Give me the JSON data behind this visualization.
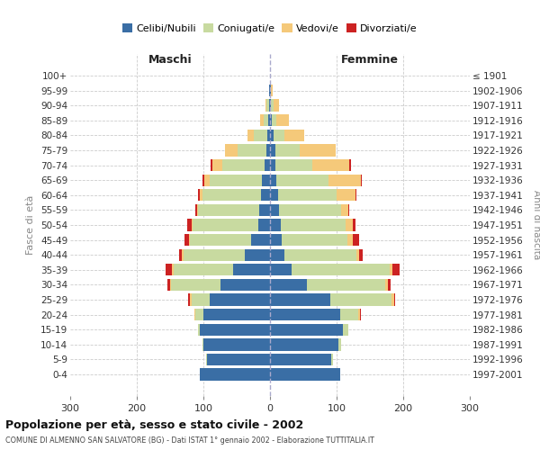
{
  "age_groups": [
    "0-4",
    "5-9",
    "10-14",
    "15-19",
    "20-24",
    "25-29",
    "30-34",
    "35-39",
    "40-44",
    "45-49",
    "50-54",
    "55-59",
    "60-64",
    "65-69",
    "70-74",
    "75-79",
    "80-84",
    "85-89",
    "90-94",
    "95-99",
    "100+"
  ],
  "birth_years": [
    "1997-2001",
    "1992-1996",
    "1987-1991",
    "1982-1986",
    "1977-1981",
    "1972-1976",
    "1967-1971",
    "1962-1966",
    "1957-1961",
    "1952-1956",
    "1947-1951",
    "1942-1946",
    "1937-1941",
    "1932-1936",
    "1927-1931",
    "1922-1926",
    "1917-1921",
    "1912-1916",
    "1907-1911",
    "1902-1906",
    "≤ 1901"
  ],
  "males_celibi": [
    105,
    95,
    100,
    105,
    100,
    90,
    75,
    55,
    38,
    28,
    18,
    16,
    14,
    12,
    8,
    6,
    4,
    3,
    2,
    1,
    0
  ],
  "males_coniugati": [
    0,
    1,
    2,
    3,
    12,
    28,
    73,
    90,
    92,
    92,
    98,
    92,
    88,
    78,
    63,
    43,
    20,
    7,
    3,
    1,
    0
  ],
  "males_vedovi": [
    0,
    0,
    0,
    0,
    1,
    2,
    2,
    2,
    2,
    2,
    2,
    2,
    4,
    8,
    15,
    18,
    10,
    5,
    2,
    0,
    0
  ],
  "males_divorziati": [
    0,
    0,
    0,
    0,
    1,
    3,
    4,
    10,
    5,
    6,
    6,
    2,
    2,
    3,
    3,
    0,
    0,
    0,
    0,
    0,
    0
  ],
  "females_nubili": [
    105,
    92,
    103,
    110,
    105,
    90,
    55,
    32,
    22,
    18,
    16,
    14,
    12,
    10,
    8,
    8,
    5,
    3,
    2,
    1,
    0
  ],
  "females_coniugate": [
    0,
    2,
    4,
    7,
    28,
    93,
    118,
    148,
    108,
    98,
    98,
    93,
    88,
    78,
    56,
    36,
    16,
    7,
    3,
    1,
    0
  ],
  "females_vedove": [
    0,
    0,
    0,
    0,
    2,
    3,
    4,
    4,
    4,
    8,
    10,
    10,
    28,
    48,
    55,
    55,
    30,
    18,
    8,
    2,
    0
  ],
  "females_divorziate": [
    0,
    0,
    0,
    0,
    1,
    2,
    4,
    10,
    5,
    10,
    5,
    2,
    2,
    2,
    2,
    0,
    0,
    0,
    0,
    0,
    0
  ],
  "colors_celibi": "#3a6ea5",
  "colors_coniugati": "#c8daa0",
  "colors_vedovi": "#f5c97a",
  "colors_divorziati": "#cc2222",
  "xlim": 300,
  "title": "Popolazione per età, sesso e stato civile - 2002",
  "subtitle": "COMUNE DI ALMENNO SAN SALVATORE (BG) - Dati ISTAT 1° gennaio 2002 - Elaborazione TUTTITALIA.IT",
  "ylabel_left": "Fasce di età",
  "ylabel_right": "Anni di nascita",
  "label_maschi": "Maschi",
  "label_femmine": "Femmine",
  "legend_labels": [
    "Celibi/Nubili",
    "Coniugati/e",
    "Vedovi/e",
    "Divorziati/e"
  ],
  "xticks": [
    -300,
    -200,
    -100,
    0,
    100,
    200,
    300
  ]
}
